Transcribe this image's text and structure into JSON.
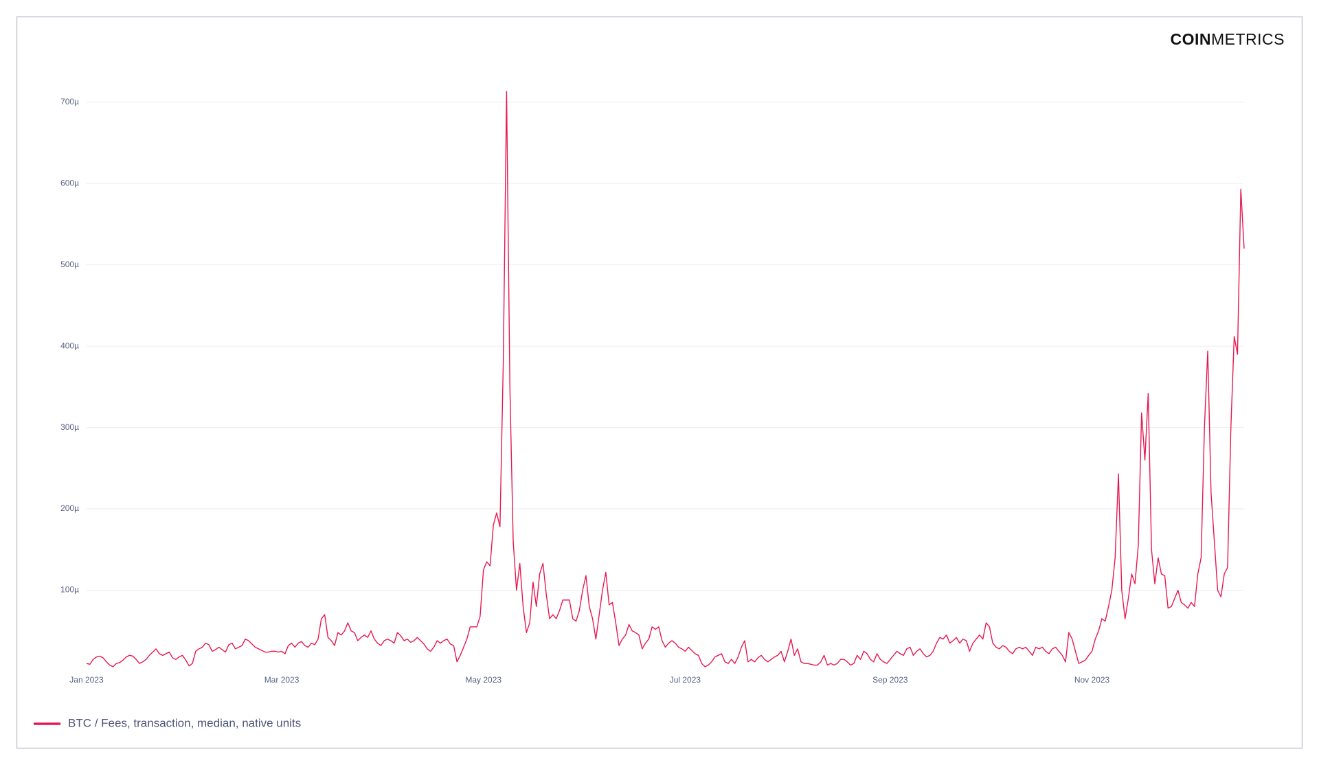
{
  "logo": {
    "bold": "COIN",
    "light": "METRICS"
  },
  "chart_data": {
    "type": "line",
    "categories": [
      "Jan 2023",
      null,
      null,
      null,
      null,
      null,
      null,
      null,
      null,
      null,
      null,
      null,
      null,
      null,
      null,
      null,
      null,
      null,
      null,
      null,
      null,
      null,
      null,
      null,
      null,
      null,
      null,
      null,
      null,
      null,
      null,
      null,
      null,
      null,
      null,
      null,
      null,
      null,
      null,
      null,
      null,
      null,
      null,
      null,
      null,
      null,
      null,
      null,
      null,
      null,
      null,
      null,
      null,
      null,
      null,
      null,
      null,
      null,
      null,
      "Mar 2023",
      null,
      null,
      null,
      null,
      null,
      null,
      null,
      null,
      null,
      null,
      null,
      null,
      null,
      null,
      null,
      null,
      null,
      null,
      null,
      null,
      null,
      null,
      null,
      null,
      null,
      null,
      null,
      null,
      null,
      null,
      null,
      null,
      null,
      null,
      null,
      null,
      null,
      null,
      null,
      null,
      null,
      null,
      null,
      null,
      null,
      null,
      null,
      null,
      null,
      null,
      null,
      null,
      null,
      null,
      null,
      null,
      null,
      null,
      null,
      null,
      "May 2023",
      null,
      null,
      null,
      null,
      null,
      null,
      null,
      null,
      null,
      null,
      null,
      null,
      null,
      null,
      null,
      null,
      null,
      null,
      null,
      null,
      null,
      null,
      null,
      null,
      null,
      null,
      null,
      null,
      null,
      null,
      null,
      null,
      null,
      null,
      null,
      null,
      null,
      null,
      null,
      null,
      null,
      null,
      null,
      null,
      null,
      null,
      null,
      null,
      null,
      null,
      null,
      null,
      null,
      null,
      null,
      null,
      null,
      null,
      null,
      null,
      "Jul 2023",
      null,
      null,
      null,
      null,
      null,
      null,
      null,
      null,
      null,
      null,
      null,
      null,
      null,
      null,
      null,
      null,
      null,
      null,
      null,
      null,
      null,
      null,
      null,
      null,
      null,
      null,
      null,
      null,
      null,
      null,
      null,
      null,
      null,
      null,
      null,
      null,
      null,
      null,
      null,
      null,
      null,
      null,
      null,
      null,
      null,
      null,
      null,
      null,
      null,
      null,
      null,
      null,
      null,
      null,
      null,
      null,
      null,
      null,
      null,
      null,
      null,
      "Sep 2023",
      null,
      null,
      null,
      null,
      null,
      null,
      null,
      null,
      null,
      null,
      null,
      null,
      null,
      null,
      null,
      null,
      null,
      null,
      null,
      null,
      null,
      null,
      null,
      null,
      null,
      null,
      null,
      null,
      null,
      null,
      null,
      null,
      null,
      null,
      null,
      null,
      null,
      null,
      null,
      null,
      null,
      null,
      null,
      null,
      null,
      null,
      null,
      null,
      null,
      null,
      null,
      null,
      null,
      null,
      null,
      null,
      null,
      null,
      null,
      null,
      "Nov 2023",
      null,
      null,
      null,
      null,
      null,
      null,
      null,
      null,
      null,
      null,
      null,
      null,
      null,
      null,
      null,
      null,
      null,
      null,
      null,
      null,
      null,
      null,
      null,
      null,
      null,
      null,
      null,
      null,
      null,
      null,
      null,
      null,
      null,
      null,
      null,
      null,
      null,
      null,
      null,
      null,
      null,
      null,
      null,
      null,
      null,
      null
    ],
    "series": [
      {
        "name": "BTC / Fees, transaction, median, native units",
        "color": "#e8174f",
        "values": [
          10,
          9,
          15,
          18,
          19,
          17,
          12,
          8,
          6,
          10,
          11,
          14,
          18,
          20,
          19,
          15,
          10,
          12,
          15,
          20,
          24,
          28,
          22,
          20,
          22,
          24,
          17,
          15,
          18,
          20,
          14,
          7,
          10,
          25,
          28,
          30,
          35,
          33,
          25,
          27,
          30,
          27,
          24,
          33,
          35,
          28,
          30,
          32,
          40,
          38,
          34,
          30,
          28,
          26,
          24,
          24,
          25,
          25,
          24,
          25,
          22,
          32,
          35,
          30,
          35,
          37,
          32,
          30,
          35,
          33,
          40,
          65,
          70,
          42,
          38,
          32,
          48,
          45,
          50,
          60,
          50,
          48,
          38,
          42,
          45,
          42,
          50,
          40,
          35,
          32,
          38,
          40,
          38,
          35,
          48,
          44,
          38,
          40,
          36,
          38,
          42,
          38,
          34,
          28,
          25,
          30,
          38,
          35,
          38,
          40,
          34,
          32,
          12,
          20,
          30,
          40,
          55,
          55,
          55,
          68,
          125,
          135,
          130,
          180,
          195,
          178,
          380,
          713,
          350,
          160,
          100,
          133,
          80,
          48,
          60,
          110,
          80,
          120,
          133,
          95,
          65,
          70,
          65,
          75,
          88,
          88,
          88,
          65,
          62,
          75,
          100,
          118,
          80,
          65,
          40,
          70,
          100,
          122,
          82,
          85,
          60,
          32,
          40,
          45,
          58,
          50,
          48,
          45,
          28,
          35,
          40,
          55,
          52,
          55,
          38,
          30,
          35,
          38,
          35,
          30,
          28,
          25,
          30,
          26,
          22,
          20,
          10,
          6,
          8,
          12,
          18,
          20,
          22,
          12,
          10,
          15,
          10,
          18,
          30,
          38,
          12,
          15,
          12,
          17,
          20,
          15,
          12,
          15,
          18,
          20,
          25,
          12,
          25,
          40,
          20,
          28,
          12,
          10,
          10,
          9,
          8,
          8,
          12,
          20,
          8,
          10,
          8,
          10,
          15,
          15,
          12,
          8,
          10,
          20,
          15,
          25,
          22,
          15,
          12,
          22,
          15,
          12,
          10,
          15,
          20,
          25,
          22,
          20,
          28,
          30,
          20,
          25,
          28,
          22,
          18,
          20,
          25,
          35,
          42,
          40,
          45,
          35,
          38,
          42,
          35,
          40,
          38,
          25,
          35,
          40,
          45,
          40,
          60,
          55,
          35,
          30,
          28,
          32,
          30,
          25,
          22,
          28,
          30,
          28,
          30,
          25,
          20,
          30,
          28,
          30,
          25,
          22,
          28,
          30,
          25,
          20,
          12,
          48,
          40,
          25,
          10,
          12,
          14,
          20,
          25,
          40,
          50,
          65,
          62,
          80,
          100,
          140,
          243,
          100,
          65,
          90,
          120,
          108,
          155,
          318,
          260,
          342,
          150,
          108,
          140,
          120,
          118,
          78,
          80,
          90,
          100,
          85,
          82,
          78,
          85,
          80,
          120,
          140,
          300,
          394,
          220,
          160,
          100,
          92,
          120,
          128,
          300,
          412,
          390,
          593,
          520
        ]
      }
    ],
    "ylim": [
      0,
      720
    ],
    "yticks": [
      {
        "value": 100,
        "label": "100µ"
      },
      {
        "value": 200,
        "label": "200µ"
      },
      {
        "value": 300,
        "label": "300µ"
      },
      {
        "value": 400,
        "label": "400µ"
      },
      {
        "value": 500,
        "label": "500µ"
      },
      {
        "value": 600,
        "label": "600µ"
      },
      {
        "value": 700,
        "label": "700µ"
      }
    ],
    "grid": true,
    "legend": "bottom-left"
  }
}
